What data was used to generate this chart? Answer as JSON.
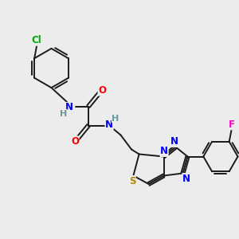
{
  "bg_color": "#ececec",
  "bond_color": "#1a1a1a",
  "bond_width": 1.4,
  "atom_colors": {
    "N": "#0000ff",
    "O": "#ff0000",
    "S": "#b8860b",
    "Cl": "#00aa00",
    "F": "#ff00cc",
    "H": "#6a9a9a",
    "C": "#1a1a1a"
  },
  "font_size": 8.5,
  "fig_width": 3.0,
  "fig_height": 3.0,
  "dpi": 100
}
